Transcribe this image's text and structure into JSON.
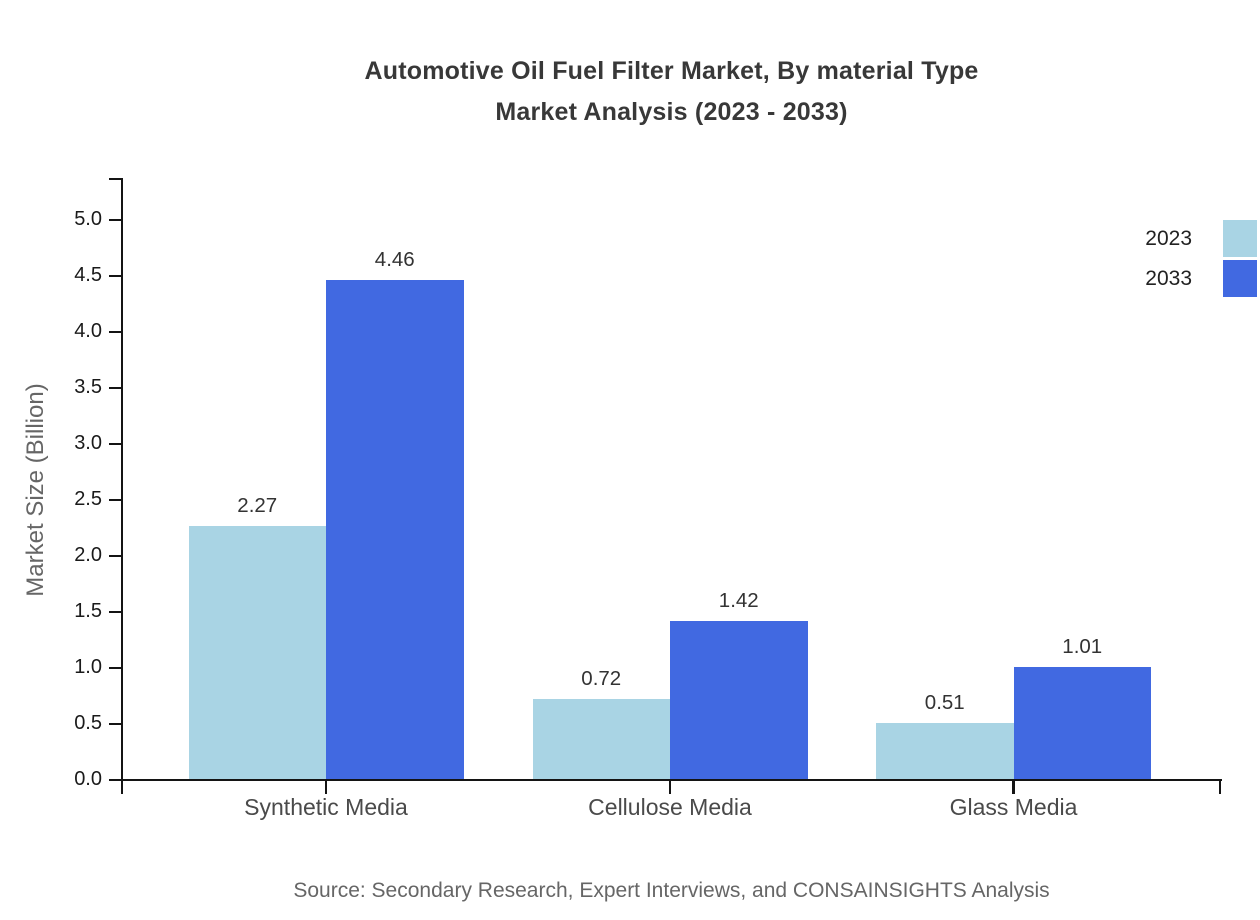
{
  "chart": {
    "title_line1": "Automotive Oil Fuel Filter Market, By material Type",
    "title_line2": "Market Analysis (2023 - 2033)",
    "ylabel": "Market Size (Billion)",
    "source": "Source: Secondary Research, Expert Interviews, and CONSAINSIGHTS Analysis"
  },
  "chart_data": {
    "type": "bar",
    "title": "Automotive Oil Fuel Filter Market, By material Type Market Analysis (2023 - 2033)",
    "xlabel": "",
    "ylabel": "Market Size (Billion)",
    "categories": [
      "Synthetic Media",
      "Cellulose Media",
      "Glass Media"
    ],
    "series": [
      {
        "name": "2023",
        "color": "#a9d4e4",
        "values": [
          2.27,
          0.72,
          0.51
        ]
      },
      {
        "name": "2033",
        "color": "#4169e1",
        "values": [
          4.46,
          1.42,
          1.01
        ]
      }
    ],
    "ylim": [
      0.0,
      5.0
    ],
    "ytick_step": 0.5,
    "ytick_format_decimals": 1,
    "bar_label_decimals": 2,
    "grid": false,
    "legend_position": "top-right",
    "source": "Source: Secondary Research, Expert Interviews, and CONSAINSIGHTS Analysis",
    "axis_color": "#141414"
  }
}
